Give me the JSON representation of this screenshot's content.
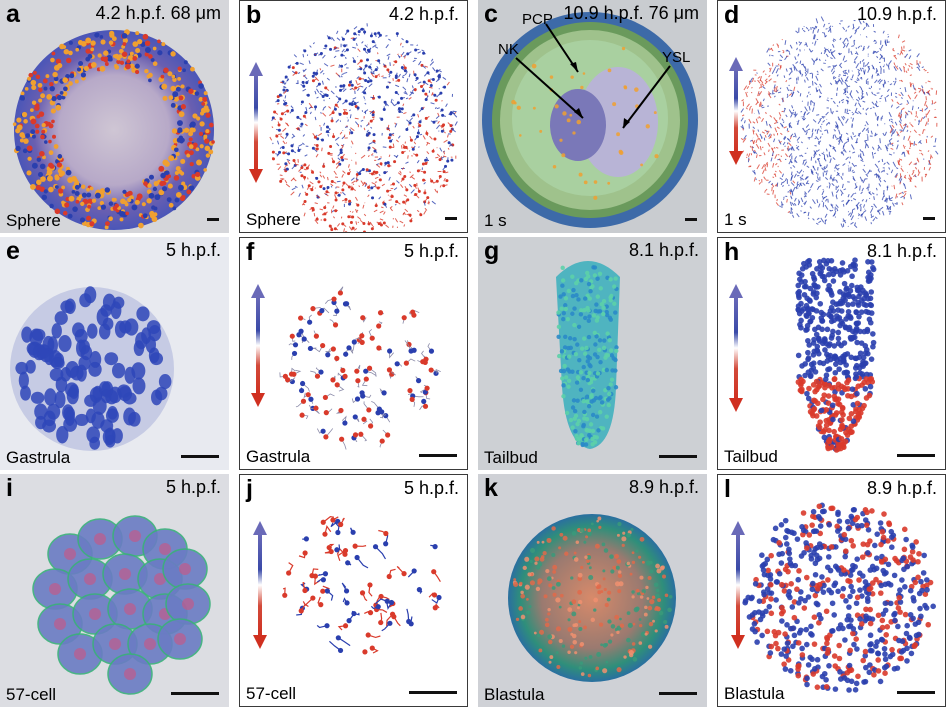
{
  "panels": [
    {
      "letter": "a",
      "time": "4.2 h.p.f. 68 μm",
      "stage": "Sphere"
    },
    {
      "letter": "b",
      "time": "4.2 h.p.f.",
      "stage": "Sphere"
    },
    {
      "letter": "c",
      "time": "10.9 h.p.f. 76 μm",
      "stage": "1 s",
      "labels": [
        "PCP",
        "NK",
        "YSL"
      ]
    },
    {
      "letter": "d",
      "time": "10.9 h.p.f.",
      "stage": "1 s"
    },
    {
      "letter": "e",
      "time": "5 h.p.f.",
      "stage": "Gastrula"
    },
    {
      "letter": "f",
      "time": "5 h.p.f.",
      "stage": "Gastrula"
    },
    {
      "letter": "g",
      "time": "8.1 h.p.f.",
      "stage": "Tailbud"
    },
    {
      "letter": "h",
      "time": "8.1 h.p.f.",
      "stage": "Tailbud"
    },
    {
      "letter": "i",
      "time": "5 h.p.f.",
      "stage": "57-cell"
    },
    {
      "letter": "j",
      "time": "5 h.p.f.",
      "stage": "57-cell"
    },
    {
      "letter": "k",
      "time": "8.9 h.p.f.",
      "stage": "Blastula"
    },
    {
      "letter": "l",
      "time": "8.9 h.p.f.",
      "stage": "Blastula"
    }
  ],
  "colors": {
    "blue": "#2a3fae",
    "red": "#d93a2b",
    "orange": "#f0a030",
    "green": "#7cc48a",
    "teal": "#3ab5c8",
    "bg": "#d5d6da"
  }
}
